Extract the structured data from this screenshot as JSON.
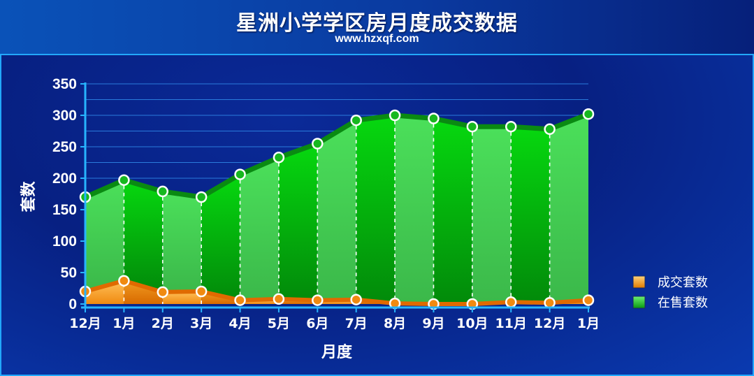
{
  "header": {
    "title": "星洲小学学区房月度成交数据",
    "subtitle": "www.hzxqf.com"
  },
  "chart_data": {
    "type": "area",
    "categories": [
      "12月",
      "1月",
      "2月",
      "3月",
      "4月",
      "5月",
      "6月",
      "7月",
      "8月",
      "9月",
      "10月",
      "11月",
      "12月",
      "1月"
    ],
    "series": [
      {
        "name": "成交套数",
        "color": "#f39a10",
        "values": [
          20,
          37,
          19,
          20,
          6,
          8,
          6,
          7,
          1,
          0,
          0,
          3,
          2,
          6
        ]
      },
      {
        "name": "在售套数",
        "color": "#1fcf2a",
        "values": [
          170,
          197,
          179,
          170,
          206,
          233,
          255,
          292,
          300,
          295,
          282,
          282,
          278,
          302
        ]
      }
    ],
    "xlabel": "月度",
    "ylabel": "套数",
    "ylim": [
      0,
      350
    ],
    "yticks": [
      0,
      50,
      100,
      150,
      200,
      250,
      300,
      350
    ],
    "grid": true,
    "legend_position": "right"
  }
}
